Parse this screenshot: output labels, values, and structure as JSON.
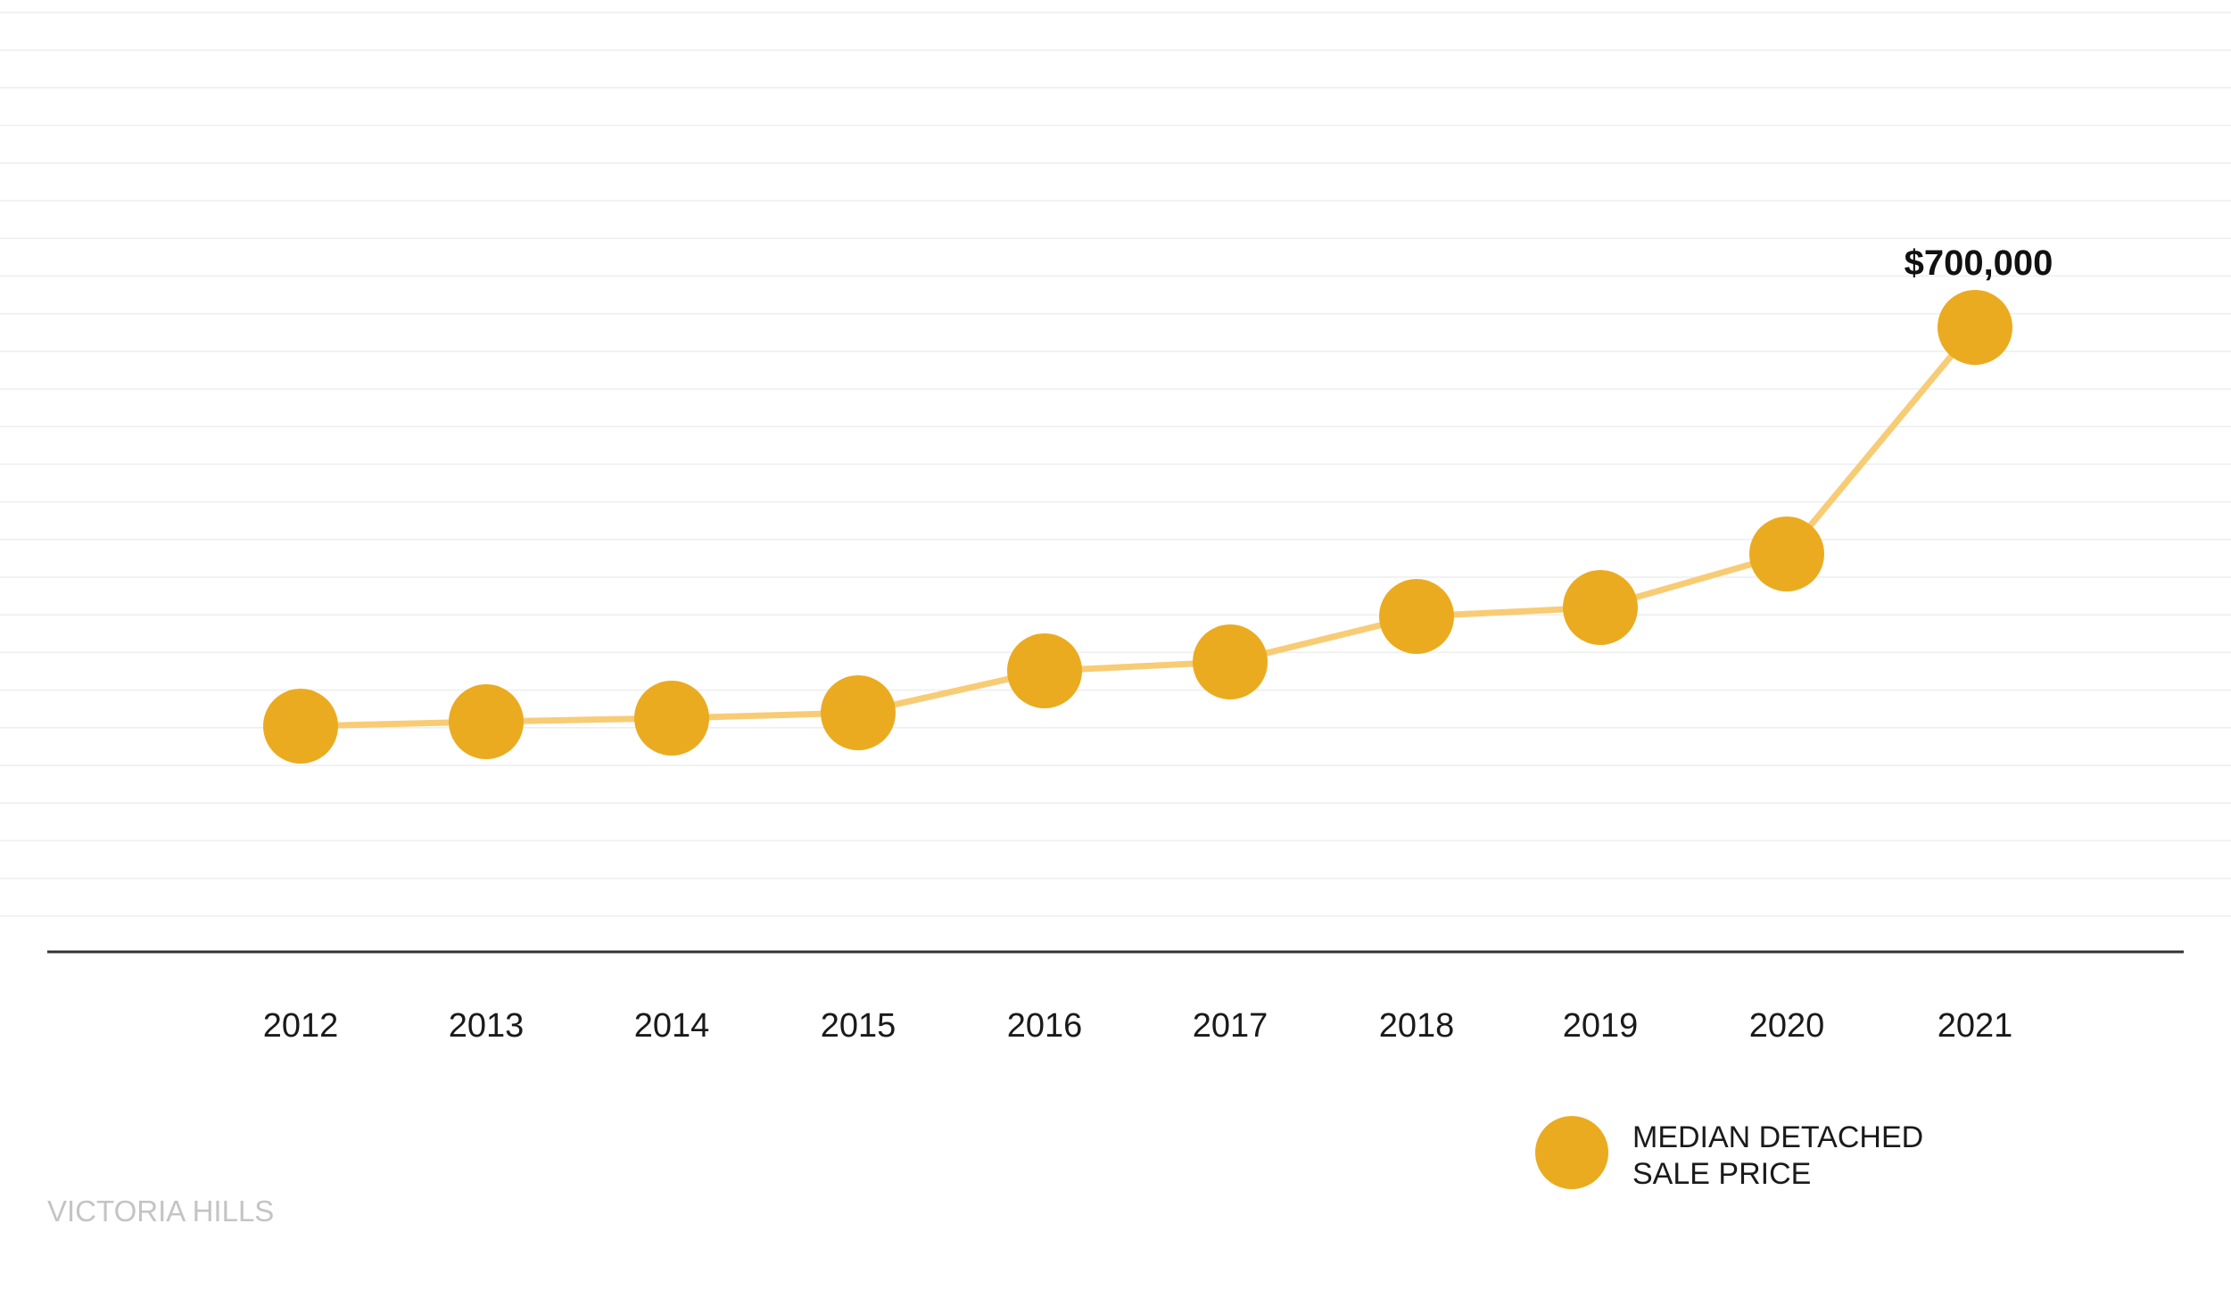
{
  "chart_data": {
    "type": "line",
    "x": [
      "2012",
      "2013",
      "2014",
      "2015",
      "2016",
      "2017",
      "2018",
      "2019",
      "2020",
      "2021"
    ],
    "series": [
      {
        "name": "MEDIAN DETACHED SALE PRICE",
        "values": [
          253000,
          258000,
          262000,
          268000,
          315000,
          325000,
          376000,
          386000,
          446000,
          700000
        ]
      }
    ],
    "annotations": [
      {
        "category": "2021",
        "text": "$700,000"
      }
    ],
    "ylim": [
      0,
      800000
    ],
    "grid": true,
    "legend_position": "bottom-right",
    "colors": {
      "marker": "#EBAB20",
      "line": "#F8CC75",
      "gridline": "#EEEEEE",
      "axis": "#333333"
    }
  },
  "legend": {
    "line1": "MEDIAN DETACHED",
    "line2": "SALE PRICE"
  },
  "watermark": "VICTORIA HILLS"
}
